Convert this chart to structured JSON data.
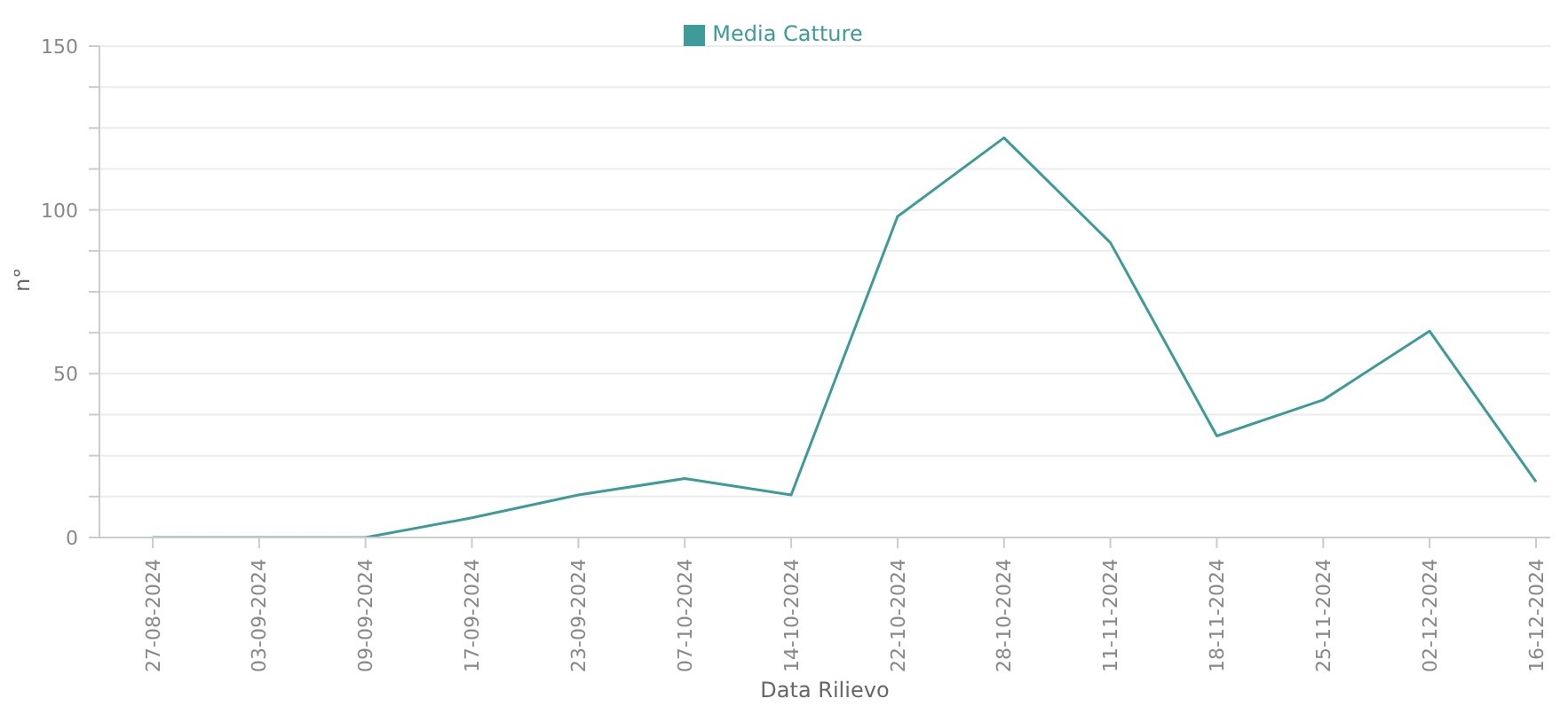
{
  "chart_data": {
    "type": "line",
    "xlabel": "Data Rilievo",
    "ylabel": "n°",
    "categories": [
      "27-08-2024",
      "03-09-2024",
      "09-09-2024",
      "17-09-2024",
      "23-09-2024",
      "07-10-2024",
      "14-10-2024",
      "22-10-2024",
      "28-10-2024",
      "11-11-2024",
      "18-11-2024",
      "25-11-2024",
      "02-12-2024",
      "16-12-2024"
    ],
    "series": [
      {
        "name": "Media Catture",
        "color": "#3d9b98",
        "values": [
          0,
          0,
          0,
          6,
          13,
          18,
          13,
          98,
          122,
          90,
          31,
          42,
          63,
          17
        ]
      }
    ],
    "ylim": [
      0,
      150
    ],
    "yticks": [
      0,
      {
        "value": 12.5,
        "label": null
      },
      {
        "value": 25,
        "label": null
      },
      {
        "value": 37.5,
        "label": null
      },
      50,
      {
        "value": 62.5,
        "label": null
      },
      {
        "value": 75,
        "label": null
      },
      {
        "value": 87.5,
        "label": null
      },
      100,
      {
        "value": 112.5,
        "label": null
      },
      {
        "value": 125,
        "label": null
      },
      {
        "value": 137.5,
        "label": null
      },
      150
    ],
    "grid": "y",
    "legend": "top",
    "marker": "none",
    "line_style": "solid"
  }
}
